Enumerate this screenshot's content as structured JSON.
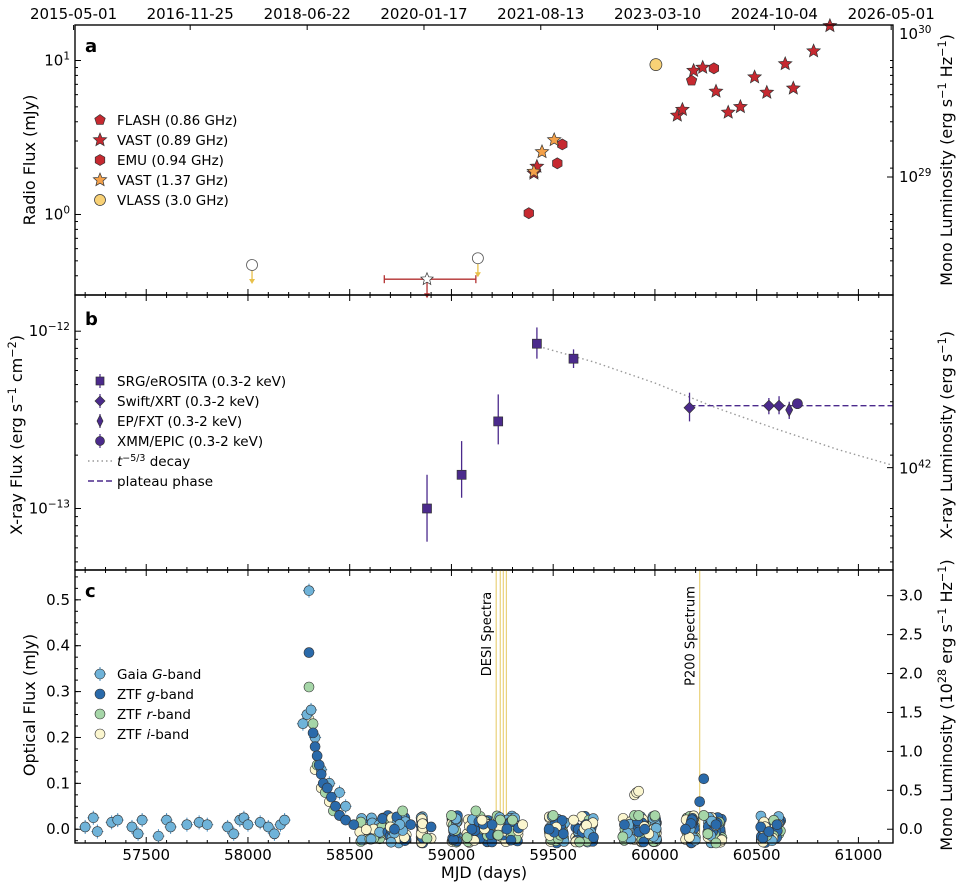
{
  "chart_data": [
    {
      "type": "scatter",
      "panel": "a",
      "x_axis": {
        "label": "MJD (days)",
        "range": [
          57150,
          61170
        ]
      },
      "top_axis": {
        "tick_labels": [
          "2015-05-01",
          "2016-11-25",
          "2018-06-22",
          "2020-01-17",
          "2021-08-13",
          "2023-03-10",
          "2024-10-04",
          "2026-05-01"
        ],
        "tick_mjd": [
          57143,
          57716,
          58291,
          58865,
          59439,
          60013,
          60587,
          61161
        ]
      },
      "y_axis": {
        "label": "Radio Flux (mJy)",
        "scale": "log",
        "range": [
          0.3,
          17
        ],
        "ticks": [
          1,
          10
        ],
        "tick_labels": [
          "10^0",
          "10^1"
        ]
      },
      "right_axis": {
        "label": "Mono Luminosity (erg s^-1 Hz^-1)",
        "scale": "log",
        "ticks": [
          {
            "at_flux": 10.4,
            "label": "10^29"
          },
          {
            "at_flux": 17.3,
            "label": "10^30"
          }
        ]
      },
      "legend": {
        "position": "left",
        "entries": [
          "FLASH (0.86 GHz)",
          "VAST (0.89 GHz)",
          "EMU (0.94 GHz)",
          "VAST (1.37 GHz)",
          "VLASS (3.0 GHz)"
        ]
      },
      "series": [
        {
          "name": "FLASH (0.86 GHz)",
          "marker": "pentagon",
          "color": "#c62930",
          "points": [
            [
              60180,
              7.4
            ]
          ]
        },
        {
          "name": "VAST (0.89 GHz)",
          "marker": "star",
          "color": "#c62930",
          "points": [
            [
              59405,
              1.85
            ],
            [
              59420,
              2.05
            ],
            [
              60110,
              4.4
            ],
            [
              60135,
              4.8
            ],
            [
              60190,
              8.6
            ],
            [
              60235,
              9.0
            ],
            [
              60300,
              6.3
            ],
            [
              60360,
              4.6
            ],
            [
              60420,
              5.0
            ],
            [
              60490,
              7.8
            ],
            [
              60550,
              6.2
            ],
            [
              60640,
              9.5
            ],
            [
              60680,
              6.6
            ],
            [
              60780,
              11.5
            ],
            [
              60860,
              16.8
            ]
          ]
        },
        {
          "name": "EMU (0.94 GHz)",
          "marker": "hexagon",
          "color": "#c62930",
          "points": [
            [
              59380,
              1.02
            ],
            [
              59520,
              2.15
            ],
            [
              59545,
              2.85
            ],
            [
              60290,
              8.9
            ]
          ]
        },
        {
          "name": "VAST (1.37 GHz)",
          "marker": "star",
          "color": "#f4a14a",
          "points": [
            [
              59405,
              1.9
            ],
            [
              59445,
              2.55
            ],
            [
              59505,
              3.05
            ]
          ]
        },
        {
          "name": "VLASS (3.0 GHz)",
          "marker": "circle",
          "color": "#f8d176",
          "points": [
            [
              60005,
              9.4
            ]
          ]
        },
        {
          "name": "upper limits",
          "marker": "open",
          "points": [
            [
              58020,
              0.47
            ],
            [
              58880,
              0.38
            ],
            [
              59130,
              0.52
            ]
          ],
          "x_error": [
            [
              58880,
              58670,
              59120
            ]
          ]
        }
      ]
    },
    {
      "type": "scatter",
      "panel": "b",
      "x_axis": {
        "label": "MJD (days)",
        "range": [
          57150,
          61170
        ]
      },
      "y_axis": {
        "label": "X-ray Flux (erg s^-1 cm^-2)",
        "scale": "log",
        "range": [
          4.5e-14,
          1.6e-12
        ],
        "ticks": [
          1e-13,
          1e-12
        ],
        "tick_labels": [
          "10^-13",
          "10^-12"
        ]
      },
      "right_axis": {
        "label": "X-ray Luminosity (erg s^-1)",
        "scale": "log",
        "ticks": [
          {
            "at_flux": 1.7e-13,
            "label": "10^42"
          }
        ]
      },
      "legend": {
        "position": "left",
        "entries": [
          "SRG/eROSITA (0.3-2 keV)",
          "Swift/XRT (0.3-2 keV)",
          "EP/FXT (0.3-2 keV)",
          "XMM/EPIC (0.3-2 keV)",
          "t^-5/3 decay",
          "plateau phase"
        ]
      },
      "series": [
        {
          "name": "SRG/eROSITA (0.3-2 keV)",
          "marker": "square",
          "color": "#4b2a8c",
          "points": [
            [
              58880,
              1e-13,
              6.5e-14,
              1.55e-13
            ],
            [
              59050,
              1.55e-13,
              1.15e-13,
              2.4e-13
            ],
            [
              59230,
              3.1e-13,
              2.3e-13,
              4.4e-13
            ],
            [
              59420,
              8.5e-13,
              7e-13,
              1.05e-12
            ],
            [
              59600,
              7e-13,
              6.2e-13,
              7.9e-13
            ]
          ]
        },
        {
          "name": "Swift/XRT (0.3-2 keV)",
          "marker": "diamond",
          "color": "#4b2a8c",
          "points": [
            [
              60170,
              3.7e-13,
              3.1e-13,
              4.5e-13
            ],
            [
              60560,
              3.8e-13,
              3.4e-13,
              4.2e-13
            ],
            [
              60610,
              3.8e-13,
              3.4e-13,
              4.3e-13
            ]
          ]
        },
        {
          "name": "EP/FXT (0.3-2 keV)",
          "marker": "thin-diamond",
          "color": "#4b2a8c",
          "points": [
            [
              60660,
              3.6e-13,
              3.2e-13,
              4e-13
            ]
          ]
        },
        {
          "name": "XMM/EPIC (0.3-2 keV)",
          "marker": "circle",
          "color": "#4b2a8c",
          "points": [
            [
              60700,
              3.9e-13,
              3.7e-13,
              4.1e-13
            ]
          ]
        }
      ],
      "lines": [
        {
          "name": "t^-5/3 decay",
          "style": "dotted",
          "color": "#999999",
          "x": [
            59430,
            59700,
            60000,
            60300,
            60600,
            60900,
            61170
          ],
          "y": [
            8.2e-13,
            6.7e-13,
            5.1e-13,
            3.7e-13,
            2.8e-13,
            2.15e-13,
            1.75e-13
          ]
        },
        {
          "name": "plateau phase",
          "style": "dashed",
          "color": "#4b2a8c",
          "x": [
            60170,
            61170
          ],
          "y": [
            3.8e-13,
            3.8e-13
          ]
        }
      ]
    },
    {
      "type": "scatter",
      "panel": "c",
      "x_axis": {
        "label": "MJD (days)",
        "range": [
          57150,
          61170
        ],
        "ticks": [
          57500,
          58000,
          58500,
          59000,
          59500,
          60000,
          60500,
          61000
        ]
      },
      "y_axis": {
        "label": "Optical Flux (mJy)",
        "scale": "linear",
        "range": [
          -0.03,
          0.565
        ],
        "ticks": [
          0.0,
          0.1,
          0.2,
          0.3,
          0.4,
          0.5
        ],
        "tick_labels": [
          "0.0",
          "0.1",
          "0.2",
          "0.3",
          "0.4",
          "0.5"
        ]
      },
      "right_axis": {
        "label": "Mono Luminosity (10^28 erg s^-1 Hz^-1)",
        "ticks": [
          "0.0",
          "0.5",
          "1.0",
          "1.5",
          "2.0",
          "2.5",
          "3.0"
        ]
      },
      "legend": {
        "position": "left",
        "entries": [
          "Gaia G-band",
          "ZTF g-band",
          "ZTF r-band",
          "ZTF i-band"
        ]
      },
      "annotations": [
        {
          "text": "DESI Spectra",
          "x": [
            59220,
            59240,
            59255,
            59270
          ]
        },
        {
          "text": "P200 Spectrum",
          "x": [
            60220
          ]
        }
      ],
      "series": [
        {
          "name": "Gaia G-band",
          "color": "#6fb3d9",
          "points": [
            [
              57200,
              0.005
            ],
            [
              57240,
              0.025
            ],
            [
              57260,
              -0.005
            ],
            [
              57330,
              0.015
            ],
            [
              57360,
              0.02
            ],
            [
              57430,
              0.005
            ],
            [
              57460,
              -0.01
            ],
            [
              57480,
              0.02
            ],
            [
              57560,
              -0.015
            ],
            [
              57600,
              0.02
            ],
            [
              57620,
              0.005
            ],
            [
              57700,
              0.01
            ],
            [
              57760,
              0.015
            ],
            [
              57800,
              0.01
            ],
            [
              57900,
              0.005
            ],
            [
              57930,
              -0.01
            ],
            [
              57960,
              0.02
            ],
            [
              57980,
              0.025
            ],
            [
              58000,
              0.01
            ],
            [
              58060,
              0.015
            ],
            [
              58100,
              0.005
            ],
            [
              58130,
              -0.01
            ],
            [
              58160,
              0.01
            ],
            [
              58180,
              0.02
            ],
            [
              58270,
              0.23
            ],
            [
              58290,
              0.25
            ],
            [
              58300,
              0.52
            ],
            [
              58310,
              0.26
            ],
            [
              58330,
              0.2
            ],
            [
              58360,
              0.13
            ],
            [
              58400,
              0.1
            ],
            [
              58450,
              0.08
            ],
            [
              58480,
              0.05
            ]
          ]
        },
        {
          "name": "ZTF g-band",
          "color": "#2a6aaa",
          "points": [
            [
              58300,
              0.385
            ],
            [
              58320,
              0.21
            ],
            [
              58330,
              0.18
            ],
            [
              58340,
              0.16
            ],
            [
              58350,
              0.14
            ],
            [
              58360,
              0.12
            ],
            [
              58370,
              0.1
            ],
            [
              58390,
              0.09
            ],
            [
              58410,
              0.07
            ],
            [
              58430,
              0.05
            ],
            [
              58450,
              0.03
            ],
            [
              58480,
              0.02
            ],
            [
              58520,
              0.01
            ],
            [
              58720,
              0.0
            ],
            [
              58800,
              0.01
            ],
            [
              58900,
              0.005
            ],
            [
              59100,
              0.0
            ],
            [
              59200,
              0.01
            ],
            [
              59480,
              0.0
            ],
            [
              59550,
              -0.01
            ],
            [
              59850,
              0.01
            ],
            [
              59950,
              0.0
            ],
            [
              60150,
              0.0
            ],
            [
              60220,
              0.06
            ],
            [
              60240,
              0.11
            ],
            [
              60300,
              0.01
            ],
            [
              60520,
              0.005
            ],
            [
              60560,
              -0.005
            ],
            [
              60600,
              0.01
            ]
          ]
        },
        {
          "name": "ZTF r-band",
          "color": "#a6d6a8",
          "points": [
            [
              58300,
              0.31
            ],
            [
              58320,
              0.23
            ],
            [
              58340,
              0.14
            ],
            [
              58380,
              0.08
            ],
            [
              58420,
              0.04
            ],
            [
              58760,
              0.04
            ],
            [
              58880,
              -0.02
            ],
            [
              59000,
              0.03
            ],
            [
              59120,
              0.04
            ],
            [
              59300,
              0.02
            ],
            [
              59500,
              0.03
            ],
            [
              59900,
              0.03
            ],
            [
              59920,
              0.03
            ],
            [
              60240,
              0.03
            ],
            [
              60260,
              -0.01
            ],
            [
              60300,
              -0.03
            ]
          ]
        },
        {
          "name": "ZTF i-band",
          "color": "#fbf6cf",
          "points": [
            [
              58300,
              0.24
            ],
            [
              58330,
              0.13
            ],
            [
              58360,
              0.09
            ],
            [
              58400,
              0.06
            ],
            [
              58450,
              0.03
            ],
            [
              58700,
              0.005
            ],
            [
              58900,
              -0.02
            ],
            [
              59150,
              0.02
            ],
            [
              59350,
              0.01
            ],
            [
              59600,
              0.02
            ],
            [
              59900,
              0.075
            ],
            [
              59910,
              0.08
            ],
            [
              59920,
              0.083
            ],
            [
              59970,
              -0.01
            ]
          ]
        }
      ]
    }
  ]
}
